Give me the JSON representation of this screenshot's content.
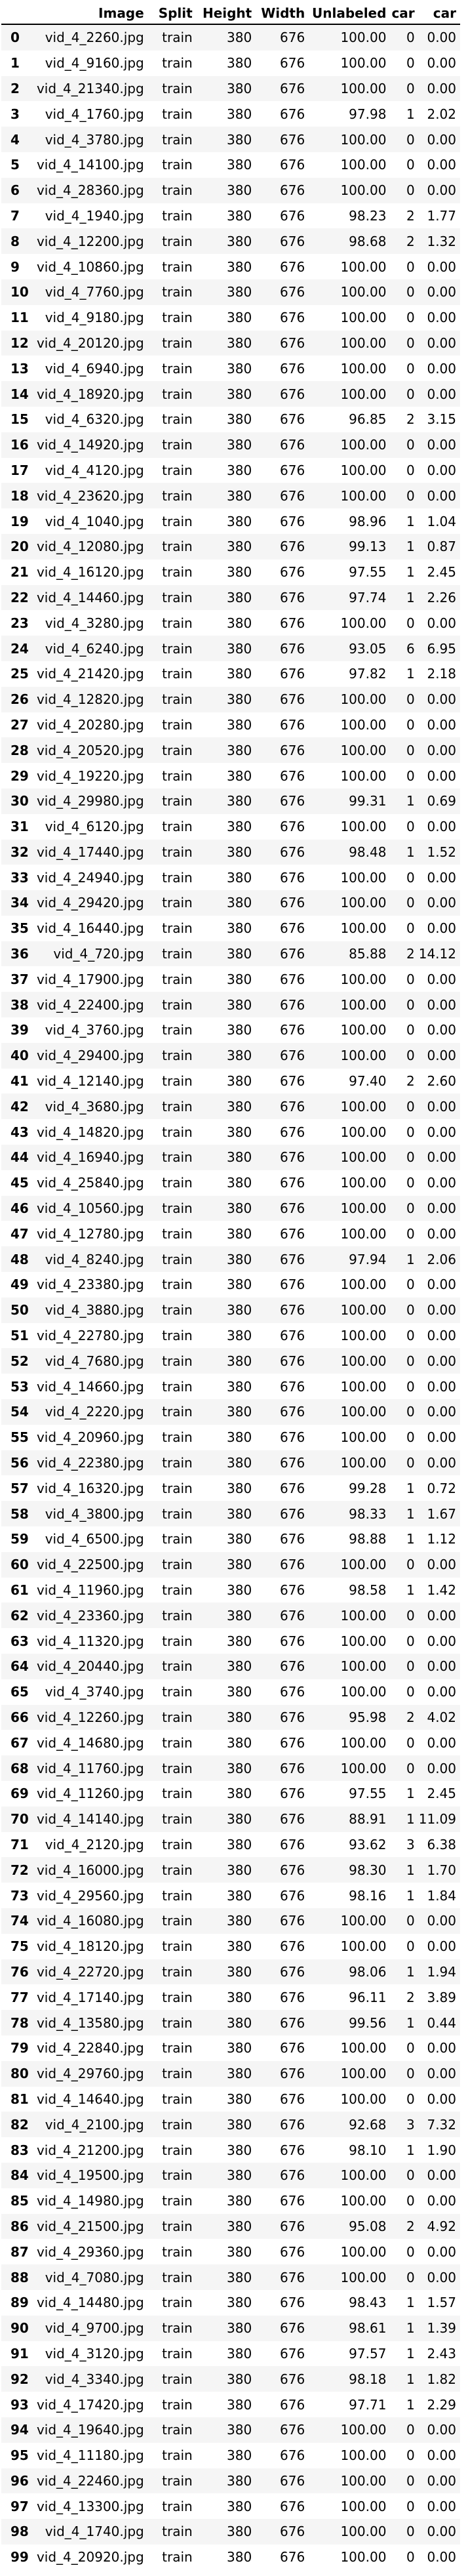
{
  "table": {
    "columns": [
      "",
      "Image",
      "Split",
      "Height",
      "Width",
      "Unlabeled",
      "car",
      "car"
    ],
    "rows": [
      [
        "0",
        "vid_4_2260.jpg",
        "train",
        "380",
        "676",
        "100.00",
        "0",
        "0.00"
      ],
      [
        "1",
        "vid_4_9160.jpg",
        "train",
        "380",
        "676",
        "100.00",
        "0",
        "0.00"
      ],
      [
        "2",
        "vid_4_21340.jpg",
        "train",
        "380",
        "676",
        "100.00",
        "0",
        "0.00"
      ],
      [
        "3",
        "vid_4_1760.jpg",
        "train",
        "380",
        "676",
        "97.98",
        "1",
        "2.02"
      ],
      [
        "4",
        "vid_4_3780.jpg",
        "train",
        "380",
        "676",
        "100.00",
        "0",
        "0.00"
      ],
      [
        "5",
        "vid_4_14100.jpg",
        "train",
        "380",
        "676",
        "100.00",
        "0",
        "0.00"
      ],
      [
        "6",
        "vid_4_28360.jpg",
        "train",
        "380",
        "676",
        "100.00",
        "0",
        "0.00"
      ],
      [
        "7",
        "vid_4_1940.jpg",
        "train",
        "380",
        "676",
        "98.23",
        "2",
        "1.77"
      ],
      [
        "8",
        "vid_4_12200.jpg",
        "train",
        "380",
        "676",
        "98.68",
        "2",
        "1.32"
      ],
      [
        "9",
        "vid_4_10860.jpg",
        "train",
        "380",
        "676",
        "100.00",
        "0",
        "0.00"
      ],
      [
        "10",
        "vid_4_7760.jpg",
        "train",
        "380",
        "676",
        "100.00",
        "0",
        "0.00"
      ],
      [
        "11",
        "vid_4_9180.jpg",
        "train",
        "380",
        "676",
        "100.00",
        "0",
        "0.00"
      ],
      [
        "12",
        "vid_4_20120.jpg",
        "train",
        "380",
        "676",
        "100.00",
        "0",
        "0.00"
      ],
      [
        "13",
        "vid_4_6940.jpg",
        "train",
        "380",
        "676",
        "100.00",
        "0",
        "0.00"
      ],
      [
        "14",
        "vid_4_18920.jpg",
        "train",
        "380",
        "676",
        "100.00",
        "0",
        "0.00"
      ],
      [
        "15",
        "vid_4_6320.jpg",
        "train",
        "380",
        "676",
        "96.85",
        "2",
        "3.15"
      ],
      [
        "16",
        "vid_4_14920.jpg",
        "train",
        "380",
        "676",
        "100.00",
        "0",
        "0.00"
      ],
      [
        "17",
        "vid_4_4120.jpg",
        "train",
        "380",
        "676",
        "100.00",
        "0",
        "0.00"
      ],
      [
        "18",
        "vid_4_23620.jpg",
        "train",
        "380",
        "676",
        "100.00",
        "0",
        "0.00"
      ],
      [
        "19",
        "vid_4_1040.jpg",
        "train",
        "380",
        "676",
        "98.96",
        "1",
        "1.04"
      ],
      [
        "20",
        "vid_4_12080.jpg",
        "train",
        "380",
        "676",
        "99.13",
        "1",
        "0.87"
      ],
      [
        "21",
        "vid_4_16120.jpg",
        "train",
        "380",
        "676",
        "97.55",
        "1",
        "2.45"
      ],
      [
        "22",
        "vid_4_14460.jpg",
        "train",
        "380",
        "676",
        "97.74",
        "1",
        "2.26"
      ],
      [
        "23",
        "vid_4_3280.jpg",
        "train",
        "380",
        "676",
        "100.00",
        "0",
        "0.00"
      ],
      [
        "24",
        "vid_4_6240.jpg",
        "train",
        "380",
        "676",
        "93.05",
        "6",
        "6.95"
      ],
      [
        "25",
        "vid_4_21420.jpg",
        "train",
        "380",
        "676",
        "97.82",
        "1",
        "2.18"
      ],
      [
        "26",
        "vid_4_12820.jpg",
        "train",
        "380",
        "676",
        "100.00",
        "0",
        "0.00"
      ],
      [
        "27",
        "vid_4_20280.jpg",
        "train",
        "380",
        "676",
        "100.00",
        "0",
        "0.00"
      ],
      [
        "28",
        "vid_4_20520.jpg",
        "train",
        "380",
        "676",
        "100.00",
        "0",
        "0.00"
      ],
      [
        "29",
        "vid_4_19220.jpg",
        "train",
        "380",
        "676",
        "100.00",
        "0",
        "0.00"
      ],
      [
        "30",
        "vid_4_29980.jpg",
        "train",
        "380",
        "676",
        "99.31",
        "1",
        "0.69"
      ],
      [
        "31",
        "vid_4_6120.jpg",
        "train",
        "380",
        "676",
        "100.00",
        "0",
        "0.00"
      ],
      [
        "32",
        "vid_4_17440.jpg",
        "train",
        "380",
        "676",
        "98.48",
        "1",
        "1.52"
      ],
      [
        "33",
        "vid_4_24940.jpg",
        "train",
        "380",
        "676",
        "100.00",
        "0",
        "0.00"
      ],
      [
        "34",
        "vid_4_29420.jpg",
        "train",
        "380",
        "676",
        "100.00",
        "0",
        "0.00"
      ],
      [
        "35",
        "vid_4_16440.jpg",
        "train",
        "380",
        "676",
        "100.00",
        "0",
        "0.00"
      ],
      [
        "36",
        "vid_4_720.jpg",
        "train",
        "380",
        "676",
        "85.88",
        "2",
        "14.12"
      ],
      [
        "37",
        "vid_4_17900.jpg",
        "train",
        "380",
        "676",
        "100.00",
        "0",
        "0.00"
      ],
      [
        "38",
        "vid_4_22400.jpg",
        "train",
        "380",
        "676",
        "100.00",
        "0",
        "0.00"
      ],
      [
        "39",
        "vid_4_3760.jpg",
        "train",
        "380",
        "676",
        "100.00",
        "0",
        "0.00"
      ],
      [
        "40",
        "vid_4_29400.jpg",
        "train",
        "380",
        "676",
        "100.00",
        "0",
        "0.00"
      ],
      [
        "41",
        "vid_4_12140.jpg",
        "train",
        "380",
        "676",
        "97.40",
        "2",
        "2.60"
      ],
      [
        "42",
        "vid_4_3680.jpg",
        "train",
        "380",
        "676",
        "100.00",
        "0",
        "0.00"
      ],
      [
        "43",
        "vid_4_14820.jpg",
        "train",
        "380",
        "676",
        "100.00",
        "0",
        "0.00"
      ],
      [
        "44",
        "vid_4_16940.jpg",
        "train",
        "380",
        "676",
        "100.00",
        "0",
        "0.00"
      ],
      [
        "45",
        "vid_4_25840.jpg",
        "train",
        "380",
        "676",
        "100.00",
        "0",
        "0.00"
      ],
      [
        "46",
        "vid_4_10560.jpg",
        "train",
        "380",
        "676",
        "100.00",
        "0",
        "0.00"
      ],
      [
        "47",
        "vid_4_12780.jpg",
        "train",
        "380",
        "676",
        "100.00",
        "0",
        "0.00"
      ],
      [
        "48",
        "vid_4_8240.jpg",
        "train",
        "380",
        "676",
        "97.94",
        "1",
        "2.06"
      ],
      [
        "49",
        "vid_4_23380.jpg",
        "train",
        "380",
        "676",
        "100.00",
        "0",
        "0.00"
      ],
      [
        "50",
        "vid_4_3880.jpg",
        "train",
        "380",
        "676",
        "100.00",
        "0",
        "0.00"
      ],
      [
        "51",
        "vid_4_22780.jpg",
        "train",
        "380",
        "676",
        "100.00",
        "0",
        "0.00"
      ],
      [
        "52",
        "vid_4_7680.jpg",
        "train",
        "380",
        "676",
        "100.00",
        "0",
        "0.00"
      ],
      [
        "53",
        "vid_4_14660.jpg",
        "train",
        "380",
        "676",
        "100.00",
        "0",
        "0.00"
      ],
      [
        "54",
        "vid_4_2220.jpg",
        "train",
        "380",
        "676",
        "100.00",
        "0",
        "0.00"
      ],
      [
        "55",
        "vid_4_20960.jpg",
        "train",
        "380",
        "676",
        "100.00",
        "0",
        "0.00"
      ],
      [
        "56",
        "vid_4_22380.jpg",
        "train",
        "380",
        "676",
        "100.00",
        "0",
        "0.00"
      ],
      [
        "57",
        "vid_4_16320.jpg",
        "train",
        "380",
        "676",
        "99.28",
        "1",
        "0.72"
      ],
      [
        "58",
        "vid_4_3800.jpg",
        "train",
        "380",
        "676",
        "98.33",
        "1",
        "1.67"
      ],
      [
        "59",
        "vid_4_6500.jpg",
        "train",
        "380",
        "676",
        "98.88",
        "1",
        "1.12"
      ],
      [
        "60",
        "vid_4_22500.jpg",
        "train",
        "380",
        "676",
        "100.00",
        "0",
        "0.00"
      ],
      [
        "61",
        "vid_4_11960.jpg",
        "train",
        "380",
        "676",
        "98.58",
        "1",
        "1.42"
      ],
      [
        "62",
        "vid_4_23360.jpg",
        "train",
        "380",
        "676",
        "100.00",
        "0",
        "0.00"
      ],
      [
        "63",
        "vid_4_11320.jpg",
        "train",
        "380",
        "676",
        "100.00",
        "0",
        "0.00"
      ],
      [
        "64",
        "vid_4_20440.jpg",
        "train",
        "380",
        "676",
        "100.00",
        "0",
        "0.00"
      ],
      [
        "65",
        "vid_4_3740.jpg",
        "train",
        "380",
        "676",
        "100.00",
        "0",
        "0.00"
      ],
      [
        "66",
        "vid_4_12260.jpg",
        "train",
        "380",
        "676",
        "95.98",
        "2",
        "4.02"
      ],
      [
        "67",
        "vid_4_14680.jpg",
        "train",
        "380",
        "676",
        "100.00",
        "0",
        "0.00"
      ],
      [
        "68",
        "vid_4_11760.jpg",
        "train",
        "380",
        "676",
        "100.00",
        "0",
        "0.00"
      ],
      [
        "69",
        "vid_4_11260.jpg",
        "train",
        "380",
        "676",
        "97.55",
        "1",
        "2.45"
      ],
      [
        "70",
        "vid_4_14140.jpg",
        "train",
        "380",
        "676",
        "88.91",
        "1",
        "11.09"
      ],
      [
        "71",
        "vid_4_2120.jpg",
        "train",
        "380",
        "676",
        "93.62",
        "3",
        "6.38"
      ],
      [
        "72",
        "vid_4_16000.jpg",
        "train",
        "380",
        "676",
        "98.30",
        "1",
        "1.70"
      ],
      [
        "73",
        "vid_4_29560.jpg",
        "train",
        "380",
        "676",
        "98.16",
        "1",
        "1.84"
      ],
      [
        "74",
        "vid_4_16080.jpg",
        "train",
        "380",
        "676",
        "100.00",
        "0",
        "0.00"
      ],
      [
        "75",
        "vid_4_18120.jpg",
        "train",
        "380",
        "676",
        "100.00",
        "0",
        "0.00"
      ],
      [
        "76",
        "vid_4_22720.jpg",
        "train",
        "380",
        "676",
        "98.06",
        "1",
        "1.94"
      ],
      [
        "77",
        "vid_4_17140.jpg",
        "train",
        "380",
        "676",
        "96.11",
        "2",
        "3.89"
      ],
      [
        "78",
        "vid_4_13580.jpg",
        "train",
        "380",
        "676",
        "99.56",
        "1",
        "0.44"
      ],
      [
        "79",
        "vid_4_22840.jpg",
        "train",
        "380",
        "676",
        "100.00",
        "0",
        "0.00"
      ],
      [
        "80",
        "vid_4_29760.jpg",
        "train",
        "380",
        "676",
        "100.00",
        "0",
        "0.00"
      ],
      [
        "81",
        "vid_4_14640.jpg",
        "train",
        "380",
        "676",
        "100.00",
        "0",
        "0.00"
      ],
      [
        "82",
        "vid_4_2100.jpg",
        "train",
        "380",
        "676",
        "92.68",
        "3",
        "7.32"
      ],
      [
        "83",
        "vid_4_21200.jpg",
        "train",
        "380",
        "676",
        "98.10",
        "1",
        "1.90"
      ],
      [
        "84",
        "vid_4_19500.jpg",
        "train",
        "380",
        "676",
        "100.00",
        "0",
        "0.00"
      ],
      [
        "85",
        "vid_4_14980.jpg",
        "train",
        "380",
        "676",
        "100.00",
        "0",
        "0.00"
      ],
      [
        "86",
        "vid_4_21500.jpg",
        "train",
        "380",
        "676",
        "95.08",
        "2",
        "4.92"
      ],
      [
        "87",
        "vid_4_29360.jpg",
        "train",
        "380",
        "676",
        "100.00",
        "0",
        "0.00"
      ],
      [
        "88",
        "vid_4_7080.jpg",
        "train",
        "380",
        "676",
        "100.00",
        "0",
        "0.00"
      ],
      [
        "89",
        "vid_4_14480.jpg",
        "train",
        "380",
        "676",
        "98.43",
        "1",
        "1.57"
      ],
      [
        "90",
        "vid_4_9700.jpg",
        "train",
        "380",
        "676",
        "98.61",
        "1",
        "1.39"
      ],
      [
        "91",
        "vid_4_3120.jpg",
        "train",
        "380",
        "676",
        "97.57",
        "1",
        "2.43"
      ],
      [
        "92",
        "vid_4_3340.jpg",
        "train",
        "380",
        "676",
        "98.18",
        "1",
        "1.82"
      ],
      [
        "93",
        "vid_4_17420.jpg",
        "train",
        "380",
        "676",
        "97.71",
        "1",
        "2.29"
      ],
      [
        "94",
        "vid_4_19640.jpg",
        "train",
        "380",
        "676",
        "100.00",
        "0",
        "0.00"
      ],
      [
        "95",
        "vid_4_11180.jpg",
        "train",
        "380",
        "676",
        "100.00",
        "0",
        "0.00"
      ],
      [
        "96",
        "vid_4_22460.jpg",
        "train",
        "380",
        "676",
        "100.00",
        "0",
        "0.00"
      ],
      [
        "97",
        "vid_4_13300.jpg",
        "train",
        "380",
        "676",
        "100.00",
        "0",
        "0.00"
      ],
      [
        "98",
        "vid_4_1740.jpg",
        "train",
        "380",
        "676",
        "100.00",
        "0",
        "0.00"
      ],
      [
        "99",
        "vid_4_20920.jpg",
        "train",
        "380",
        "676",
        "100.00",
        "0",
        "0.00"
      ]
    ]
  }
}
